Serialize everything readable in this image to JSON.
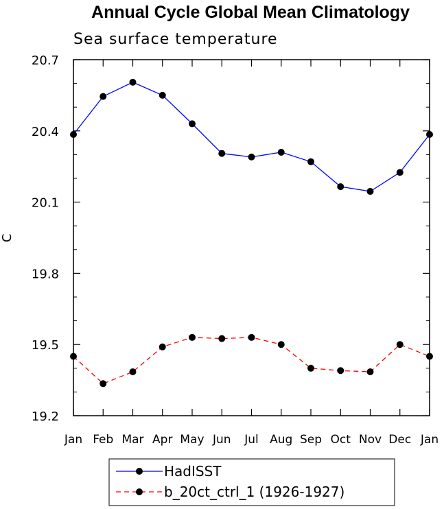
{
  "chart_data": {
    "type": "line",
    "title": "Annual Cycle Global Mean Climatology",
    "subtitle": "Sea surface temperature",
    "xlabel": "",
    "ylabel": "C",
    "categories": [
      "Jan",
      "Feb",
      "Mar",
      "Apr",
      "May",
      "Jun",
      "Jul",
      "Aug",
      "Sep",
      "Oct",
      "Nov",
      "Dec",
      "Jan"
    ],
    "ylim": [
      19.2,
      20.7
    ],
    "yticks": [
      "19.2",
      "19.5",
      "19.8",
      "20.1",
      "20.4",
      "20.7"
    ],
    "grid": false,
    "legend_position": "bottom",
    "series": [
      {
        "name": "HadISST",
        "color": "#0000ff",
        "dash": "solid",
        "values": [
          20.385,
          20.545,
          20.605,
          20.55,
          20.43,
          20.305,
          20.29,
          20.31,
          20.27,
          20.165,
          20.145,
          20.225,
          20.385
        ]
      },
      {
        "name": "b_20ct_ctrl_1 (1926-1927)",
        "color": "#ff0000",
        "dash": "dashed",
        "values": [
          19.45,
          19.335,
          19.385,
          19.49,
          19.53,
          19.525,
          19.53,
          19.5,
          19.4,
          19.39,
          19.385,
          19.5,
          19.45
        ]
      }
    ]
  }
}
